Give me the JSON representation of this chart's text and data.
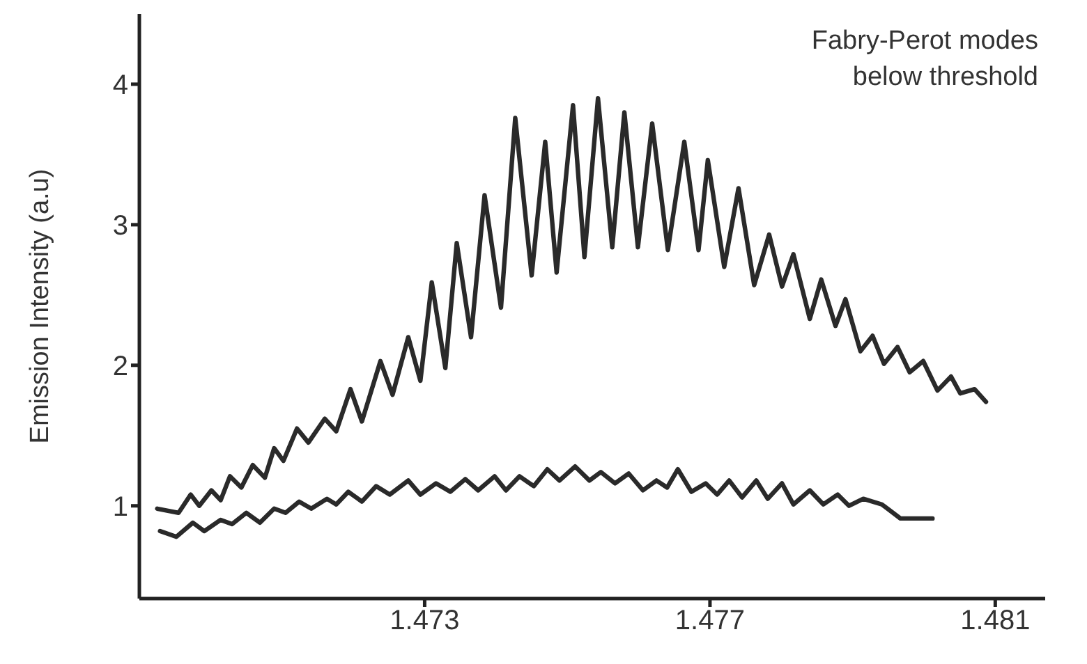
{
  "chart_data": {
    "type": "line",
    "ylabel": "Emission Intensity (a.u)",
    "annotations": [
      "Fabry-Perot modes\nbelow threshold"
    ],
    "xlim": [
      1.469,
      1.4817
    ],
    "ylim": [
      0.34,
      4.5
    ],
    "xticks": [
      1.473,
      1.477,
      1.481
    ],
    "yticks": [
      1,
      2,
      3,
      4
    ],
    "grid": false,
    "marker": "none",
    "line_style": "solid",
    "series": [
      {
        "color": "#2a2a2a",
        "x": [
          1.46925,
          1.46955,
          1.46972,
          1.46984,
          1.47001,
          1.47014,
          1.47027,
          1.47043,
          1.47059,
          1.47076,
          1.47089,
          1.47102,
          1.47121,
          1.47137,
          1.4716,
          1.47176,
          1.47196,
          1.47212,
          1.47238,
          1.47255,
          1.47277,
          1.47294,
          1.4731,
          1.47329,
          1.47345,
          1.47365,
          1.47384,
          1.47407,
          1.47427,
          1.4745,
          1.47469,
          1.47485,
          1.47508,
          1.47524,
          1.47543,
          1.47563,
          1.4758,
          1.47599,
          1.47619,
          1.47641,
          1.47664,
          1.47684,
          1.47697,
          1.4772,
          1.4774,
          1.47762,
          1.47783,
          1.47801,
          1.47817,
          1.4784,
          1.47856,
          1.47876,
          1.4789,
          1.47911,
          1.47928,
          1.47944,
          1.47963,
          1.4798,
          1.47999,
          1.48019,
          1.48038,
          1.48051,
          1.48071,
          1.48087
        ],
        "values": [
          0.98,
          0.95,
          1.08,
          1.0,
          1.11,
          1.04,
          1.21,
          1.13,
          1.29,
          1.2,
          1.41,
          1.32,
          1.55,
          1.45,
          1.62,
          1.53,
          1.83,
          1.6,
          2.03,
          1.79,
          2.2,
          1.89,
          2.59,
          1.98,
          2.87,
          2.2,
          3.21,
          2.41,
          3.76,
          2.64,
          3.59,
          2.66,
          3.85,
          2.77,
          3.9,
          2.84,
          3.8,
          2.84,
          3.72,
          2.82,
          3.59,
          2.82,
          3.46,
          2.7,
          3.26,
          2.57,
          2.93,
          2.56,
          2.79,
          2.33,
          2.61,
          2.28,
          2.47,
          2.1,
          2.21,
          2.01,
          2.13,
          1.95,
          2.03,
          1.82,
          1.92,
          1.8,
          1.83,
          1.74
        ]
      },
      {
        "color": "#2a2a2a",
        "x": [
          1.46929,
          1.46952,
          1.46975,
          1.46991,
          1.47014,
          1.4703,
          1.4705,
          1.47069,
          1.47089,
          1.47105,
          1.47124,
          1.47141,
          1.47163,
          1.47176,
          1.47193,
          1.47212,
          1.47232,
          1.47251,
          1.47277,
          1.47294,
          1.47316,
          1.47336,
          1.47357,
          1.47375,
          1.47398,
          1.47414,
          1.47433,
          1.47453,
          1.47472,
          1.47489,
          1.47511,
          1.47531,
          1.47547,
          1.47567,
          1.47586,
          1.47606,
          1.47625,
          1.4764,
          1.47655,
          1.47674,
          1.47694,
          1.4771,
          1.47727,
          1.47745,
          1.47765,
          1.47781,
          1.47801,
          1.47817,
          1.4784,
          1.47859,
          1.47879,
          1.47895,
          1.47915,
          1.47941,
          1.47967,
          1.48012
        ],
        "values": [
          0.82,
          0.78,
          0.88,
          0.82,
          0.9,
          0.87,
          0.95,
          0.88,
          0.98,
          0.95,
          1.03,
          0.98,
          1.05,
          1.01,
          1.1,
          1.03,
          1.14,
          1.08,
          1.18,
          1.08,
          1.16,
          1.1,
          1.19,
          1.11,
          1.21,
          1.11,
          1.21,
          1.14,
          1.26,
          1.18,
          1.28,
          1.18,
          1.24,
          1.16,
          1.23,
          1.11,
          1.18,
          1.13,
          1.26,
          1.1,
          1.16,
          1.08,
          1.18,
          1.06,
          1.18,
          1.05,
          1.16,
          1.01,
          1.11,
          1.01,
          1.08,
          1.0,
          1.05,
          1.01,
          0.91,
          0.91
        ]
      }
    ]
  }
}
